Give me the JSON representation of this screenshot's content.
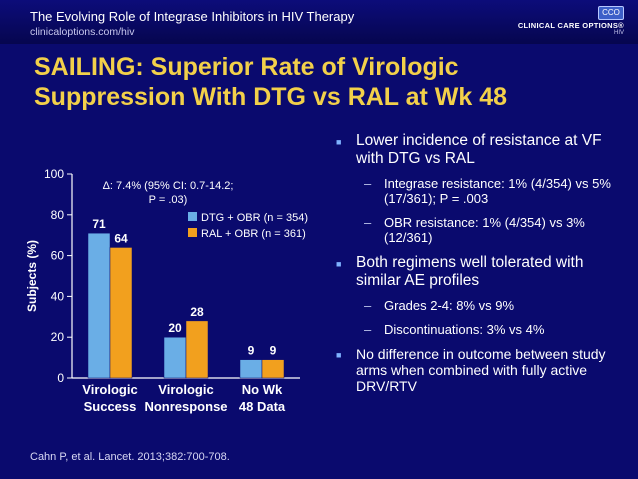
{
  "header": {
    "deck_title": "The Evolving Role of Integrase Inhibitors in HIV Therapy",
    "url": "clinicaloptions.com/hiv",
    "logo_mark": "CCO",
    "logo_name": "CLINICAL CARE OPTIONS®",
    "logo_sub": "HIV"
  },
  "slide": {
    "title_line1": "SAILING: Superior Rate of Virologic",
    "title_line2": "Suppression With DTG vs RAL at Wk 48"
  },
  "bullets": [
    {
      "text": "Lower incidence of resistance at VF with DTG vs RAL",
      "sub": [
        {
          "text": "Integrase resistance: 1% (4/354) vs 5% (17/361); P = .003"
        },
        {
          "text": "OBR resistance: 1% (4/354) vs 3% (12/361)"
        }
      ]
    },
    {
      "text": "Both regimens well tolerated with similar AE profiles",
      "sub": [
        {
          "text": "Grades 2-4: 8% vs 9%"
        },
        {
          "text": "Discontinuations: 3% vs 4%"
        }
      ]
    },
    {
      "text": "No difference in outcome between study arms when combined with fully active DRV/RTV",
      "sub": []
    }
  ],
  "chart_data": {
    "type": "bar",
    "categories": [
      "Virologic Success",
      "Virologic Nonresponse",
      "No Wk 48 Data"
    ],
    "series": [
      {
        "name": "DTG + OBR (n = 354)",
        "values": [
          71,
          20,
          9
        ],
        "color": "#6aaee6"
      },
      {
        "name": "RAL + OBR (n = 361)",
        "values": [
          64,
          28,
          9
        ],
        "color": "#f2a01e"
      }
    ],
    "ylabel": "Subjects (%)",
    "ylim": [
      0,
      100
    ],
    "yticks": [
      0,
      20,
      40,
      60,
      80,
      100
    ],
    "grid": false,
    "legend": "top-right",
    "annotation_line1": "Δ: 7.4% (95% CI: 0.7-14.2;",
    "annotation_line2": "P = .03)"
  },
  "footnote": "Cahn P, et al. Lancet. 2013;382:700-708."
}
